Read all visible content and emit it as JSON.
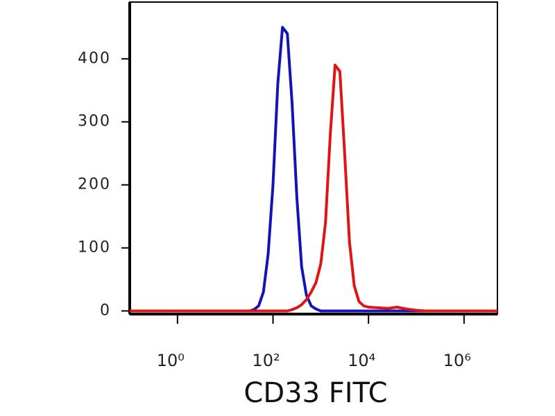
{
  "chart_data": {
    "type": "line",
    "x_label": "CD33 FITC",
    "x": [
      0.1,
      32,
      40,
      50,
      63,
      79,
      100,
      126,
      158,
      200,
      251,
      316,
      398,
      501,
      631,
      794,
      1000,
      1259,
      1585,
      1995,
      2512,
      3162,
      3981,
      5012,
      6310,
      7943,
      10000,
      15849,
      25119,
      39811,
      63096,
      100000,
      158489,
      5000000
    ],
    "series": [
      {
        "color": "#1414b4",
        "values": [
          0,
          0,
          2,
          8,
          30,
          90,
          200,
          360,
          450,
          440,
          330,
          180,
          70,
          25,
          8,
          3,
          0,
          0,
          0,
          0,
          0,
          0,
          0,
          0,
          0,
          0,
          0,
          0,
          0,
          0,
          0,
          0,
          0,
          0
        ]
      },
      {
        "color": "#e01414",
        "values": [
          0,
          0,
          0,
          0,
          0,
          0,
          0,
          0,
          0,
          0,
          2,
          5,
          10,
          18,
          30,
          45,
          75,
          140,
          280,
          390,
          380,
          250,
          110,
          40,
          15,
          8,
          6,
          5,
          4,
          6,
          3,
          1,
          0,
          0
        ]
      }
    ],
    "xscale": "log",
    "xlim": [
      0.1,
      5000000
    ],
    "xticks": [
      {
        "value": 1,
        "label": "10⁰"
      },
      {
        "value": 100,
        "label": "10²"
      },
      {
        "value": 10000,
        "label": "10⁴"
      },
      {
        "value": 1000000,
        "label": "10⁶"
      }
    ],
    "ylim": [
      -5,
      490
    ],
    "yticks": [
      0,
      100,
      200,
      300,
      400
    ]
  }
}
